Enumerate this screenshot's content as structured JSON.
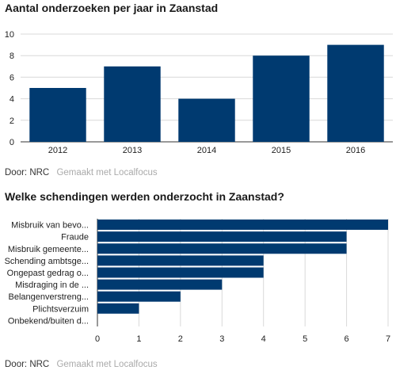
{
  "charts": [
    {
      "title": "Aantal onderzoeken per jaar in Zaanstad",
      "footer": {
        "source": "Door: NRC",
        "made_with": "Gemaakt met Localfocus"
      }
    },
    {
      "title": "Welke schendingen werden onderzocht in Zaanstad?",
      "footer": {
        "source": "Door: NRC",
        "made_with": "Gemaakt met Localfocus"
      }
    }
  ],
  "colors": {
    "bar": "#003a70",
    "grid": "#d9d9d9",
    "axis": "#333333"
  },
  "chart_data": [
    {
      "type": "bar",
      "orientation": "vertical",
      "title": "Aantal onderzoeken per jaar in Zaanstad",
      "categories": [
        "2012",
        "2013",
        "2014",
        "2015",
        "2016"
      ],
      "values": [
        5,
        7,
        4,
        8,
        9
      ],
      "ylim": [
        0,
        10
      ],
      "yticks": [
        0,
        2,
        4,
        6,
        8,
        10
      ],
      "grid": true
    },
    {
      "type": "bar",
      "orientation": "horizontal",
      "title": "Welke schendingen werden onderzocht in Zaanstad?",
      "categories": [
        "Misbruik van bevo...",
        "Fraude",
        "Misbruik gemeente...",
        "Schending ambtsge...",
        "Ongepast gedrag o...",
        "Misdraging in de ...",
        "Belangenverstreng...",
        "Plichtsverzuim",
        "Onbekend/buiten d..."
      ],
      "values": [
        7,
        6,
        6,
        4,
        4,
        3,
        2,
        1,
        0
      ],
      "xlim": [
        0,
        7
      ],
      "xticks": [
        0,
        1,
        2,
        3,
        4,
        5,
        6,
        7
      ],
      "grid": true
    }
  ]
}
